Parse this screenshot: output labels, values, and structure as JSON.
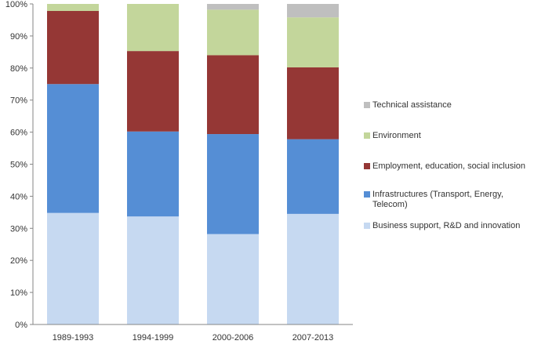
{
  "chart_data": {
    "type": "bar",
    "stacked": true,
    "categories": [
      "1989-1993",
      "1994-1999",
      "2000-2006",
      "2007-2013"
    ],
    "series": [
      {
        "name": "Business support, R&D and innovation",
        "color": "#c6d9f1",
        "values": [
          34.8,
          33.7,
          28.2,
          34.5
        ]
      },
      {
        "name": "Infrastructures (Transport, Energy, Telecom)",
        "color": "#558ed5",
        "values": [
          40.2,
          26.5,
          31.2,
          23.3
        ]
      },
      {
        "name": "Employment, education, social inclusion",
        "color": "#953735",
        "values": [
          22.8,
          25.1,
          24.6,
          22.4
        ]
      },
      {
        "name": "Environment",
        "color": "#c3d69b",
        "values": [
          2.2,
          14.7,
          14.2,
          15.6
        ]
      },
      {
        "name": "Technical assistance",
        "color": "#bfbfbf",
        "values": [
          0.0,
          0.0,
          1.8,
          4.2
        ]
      }
    ],
    "legend_order": [
      "Technical assistance",
      "Environment",
      "Employment, education, social inclusion",
      "Infrastructures (Transport, Energy, Telecom)",
      "Business support, R&D and innovation"
    ],
    "yticks": [
      "0%",
      "10%",
      "20%",
      "30%",
      "40%",
      "50%",
      "60%",
      "70%",
      "80%",
      "90%",
      "100%"
    ],
    "ylim": [
      0,
      100
    ],
    "title": "",
    "xlabel": "",
    "ylabel": "",
    "grid": false,
    "legend_position": "right"
  }
}
